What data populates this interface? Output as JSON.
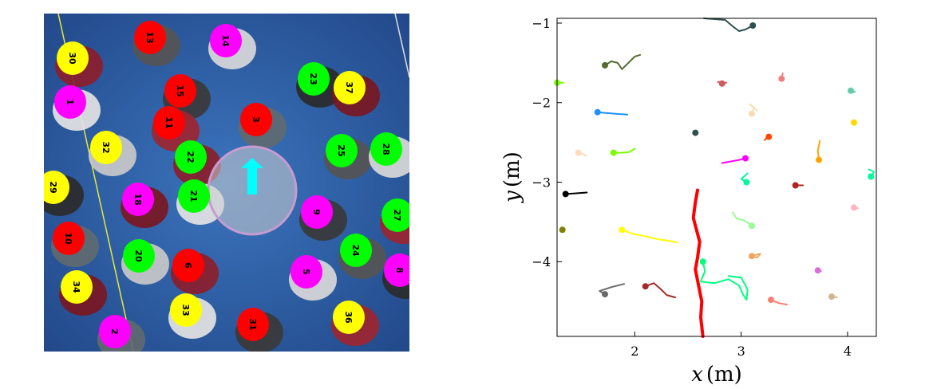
{
  "photo": {
    "background": "#2f5fa0",
    "robot_color": "#00ffff",
    "labels": [
      {
        "id": "30",
        "color": "#ffff00"
      },
      {
        "id": "13",
        "color": "#ff0000"
      },
      {
        "id": "14",
        "color": "#ff00ff"
      },
      {
        "id": "23",
        "color": "#00ff00"
      },
      {
        "id": "37",
        "color": "#ffff00"
      },
      {
        "id": "1",
        "color": "#ff00ff"
      },
      {
        "id": "15",
        "color": "#ff0000"
      },
      {
        "id": "11",
        "color": "#ff0000"
      },
      {
        "id": "3",
        "color": "#ff0000"
      },
      {
        "id": "32",
        "color": "#ffff00"
      },
      {
        "id": "22",
        "color": "#00ff00"
      },
      {
        "id": "25",
        "color": "#00ff00"
      },
      {
        "id": "28",
        "color": "#00ff00"
      },
      {
        "id": "29",
        "color": "#ffff00"
      },
      {
        "id": "18",
        "color": "#ff00ff"
      },
      {
        "id": "21",
        "color": "#00ff00"
      },
      {
        "id": "9",
        "color": "#ff00ff"
      },
      {
        "id": "27",
        "color": "#00ff00"
      },
      {
        "id": "10",
        "color": "#ff0000"
      },
      {
        "id": "20",
        "color": "#00ff00"
      },
      {
        "id": "6",
        "color": "#ff0000"
      },
      {
        "id": "24",
        "color": "#00ff00"
      },
      {
        "id": "5",
        "color": "#ff00ff"
      },
      {
        "id": "8",
        "color": "#ff00ff"
      },
      {
        "id": "34",
        "color": "#ffff00"
      },
      {
        "id": "33",
        "color": "#ffff00"
      },
      {
        "id": "31",
        "color": "#ff0000"
      },
      {
        "id": "36",
        "color": "#ffff00"
      },
      {
        "id": "2",
        "color": "#ff00ff"
      }
    ]
  },
  "chart_data": {
    "type": "line",
    "xlabel": "x",
    "ylabel": "y",
    "x_unit": "(m)",
    "y_unit": "(m)",
    "xlim": [
      1.27,
      4.27
    ],
    "ylim": [
      -4.94,
      -0.94
    ],
    "x_ticks": [
      2,
      3,
      4
    ],
    "y_ticks": [
      -1,
      -2,
      -3,
      -4
    ],
    "x_tick_labels": [
      "2",
      "3",
      "4"
    ],
    "y_tick_labels": [
      "−1",
      "−2",
      "−3",
      "−4"
    ],
    "grid": false,
    "series": [
      {
        "color": "#ff0000",
        "width": 4,
        "marker": false,
        "points": [
          [
            2.59,
            -3.1
          ],
          [
            2.57,
            -3.25
          ],
          [
            2.55,
            -3.45
          ],
          [
            2.58,
            -3.6
          ],
          [
            2.61,
            -3.75
          ],
          [
            2.59,
            -3.95
          ],
          [
            2.57,
            -4.1
          ],
          [
            2.6,
            -4.3
          ],
          [
            2.63,
            -4.5
          ],
          [
            2.62,
            -4.7
          ],
          [
            2.64,
            -4.94
          ]
        ]
      },
      {
        "color": "#2f4f4f",
        "points": [
          [
            3.11,
            -1.03
          ],
          [
            3.04,
            -1.08
          ],
          [
            2.98,
            -1.1
          ],
          [
            2.92,
            -1.04
          ],
          [
            2.85,
            -0.96
          ],
          [
            2.65,
            -0.94
          ]
        ]
      },
      {
        "color": "#556b2f",
        "points": [
          [
            1.72,
            -1.53
          ],
          [
            1.78,
            -1.48
          ],
          [
            1.84,
            -1.5
          ],
          [
            1.88,
            -1.58
          ],
          [
            1.94,
            -1.5
          ],
          [
            2.0,
            -1.42
          ],
          [
            2.05,
            -1.4
          ]
        ]
      },
      {
        "color": "#7cfc00",
        "points": [
          [
            1.27,
            -1.75
          ],
          [
            1.33,
            -1.75
          ]
        ]
      },
      {
        "color": "#cd5c5c",
        "points": [
          [
            2.82,
            -1.76
          ],
          [
            2.86,
            -1.75
          ],
          [
            2.78,
            -1.74
          ]
        ]
      },
      {
        "color": "#f08080",
        "points": [
          [
            3.38,
            -1.7
          ],
          [
            3.39,
            -1.63
          ]
        ]
      },
      {
        "color": "#66cdaa",
        "points": [
          [
            4.03,
            -1.85
          ],
          [
            4.07,
            -1.86
          ],
          [
            4.05,
            -1.87
          ]
        ]
      },
      {
        "color": "#1e90ff",
        "points": [
          [
            1.65,
            -2.12
          ],
          [
            1.73,
            -2.13
          ],
          [
            1.82,
            -2.14
          ],
          [
            1.93,
            -2.15
          ]
        ]
      },
      {
        "color": "#f5deb3",
        "points": [
          [
            3.1,
            -2.14
          ],
          [
            3.12,
            -2.06
          ],
          [
            3.08,
            -2.02
          ],
          [
            3.15,
            -2.1
          ]
        ]
      },
      {
        "color": "#ffd700",
        "points": [
          [
            4.06,
            -2.25
          ]
        ]
      },
      {
        "color": "#2f4f4f",
        "points": [
          [
            2.57,
            -2.38
          ]
        ]
      },
      {
        "color": "#ff4500",
        "points": [
          [
            3.26,
            -2.43
          ],
          [
            3.22,
            -2.47
          ]
        ]
      },
      {
        "color": "#ffa500",
        "points": [
          [
            3.73,
            -2.72
          ],
          [
            3.72,
            -2.6
          ],
          [
            3.74,
            -2.48
          ]
        ]
      },
      {
        "color": "#ffdab9",
        "points": [
          [
            1.47,
            -2.63
          ],
          [
            1.52,
            -2.65
          ],
          [
            1.54,
            -2.67
          ]
        ]
      },
      {
        "color": "#7cfc00",
        "points": [
          [
            1.8,
            -2.63
          ],
          [
            1.88,
            -2.63
          ],
          [
            1.95,
            -2.62
          ],
          [
            2.0,
            -2.58
          ]
        ]
      },
      {
        "color": "#ff00ff",
        "points": [
          [
            3.04,
            -2.7
          ],
          [
            2.98,
            -2.72
          ],
          [
            2.9,
            -2.74
          ],
          [
            2.82,
            -2.76
          ]
        ]
      },
      {
        "color": "#00fa9a",
        "points": [
          [
            4.22,
            -2.93
          ],
          [
            4.25,
            -2.87
          ],
          [
            4.2,
            -2.84
          ]
        ]
      },
      {
        "color": "#00fa9a",
        "points": [
          [
            3.05,
            -3.0
          ],
          [
            3.0,
            -2.96
          ],
          [
            3.06,
            -2.89
          ]
        ]
      },
      {
        "color": "#000000",
        "points": [
          [
            1.35,
            -3.15
          ],
          [
            1.45,
            -3.14
          ],
          [
            1.55,
            -3.13
          ]
        ]
      },
      {
        "color": "#b22222",
        "points": [
          [
            3.51,
            -3.04
          ],
          [
            3.58,
            -3.04
          ]
        ]
      },
      {
        "color": "#98fb98",
        "points": [
          [
            3.1,
            -3.55
          ],
          [
            3.03,
            -3.48
          ],
          [
            2.96,
            -3.46
          ],
          [
            2.92,
            -3.38
          ]
        ]
      },
      {
        "color": "#ffb6c1",
        "points": [
          [
            4.06,
            -3.32
          ],
          [
            4.1,
            -3.33
          ]
        ]
      },
      {
        "color": "#808000",
        "points": [
          [
            1.32,
            -3.6
          ]
        ]
      },
      {
        "color": "#ffff00",
        "points": [
          [
            1.88,
            -3.6
          ],
          [
            1.98,
            -3.65
          ],
          [
            2.1,
            -3.68
          ],
          [
            2.22,
            -3.72
          ],
          [
            2.33,
            -3.74
          ],
          [
            2.4,
            -3.76
          ]
        ]
      },
      {
        "color": "#f4a460",
        "points": [
          [
            3.1,
            -3.93
          ],
          [
            3.15,
            -3.95
          ],
          [
            3.18,
            -3.9
          ],
          [
            3.12,
            -3.92
          ]
        ]
      },
      {
        "color": "#00ff7f",
        "points": [
          [
            2.64,
            -4.0
          ],
          [
            2.66,
            -4.12
          ],
          [
            2.62,
            -4.25
          ],
          [
            2.75,
            -4.27
          ],
          [
            2.88,
            -4.22
          ],
          [
            2.98,
            -4.3
          ],
          [
            3.02,
            -4.42
          ],
          [
            3.05,
            -4.48
          ],
          [
            3.06,
            -4.35
          ],
          [
            3.0,
            -4.2
          ],
          [
            2.88,
            -4.18
          ]
        ]
      },
      {
        "color": "#da70d6",
        "points": [
          [
            3.72,
            -4.11
          ],
          [
            3.75,
            -4.12
          ]
        ]
      },
      {
        "color": "#696969",
        "points": [
          [
            1.72,
            -4.41
          ],
          [
            1.67,
            -4.37
          ],
          [
            1.78,
            -4.32
          ],
          [
            1.9,
            -4.28
          ]
        ]
      },
      {
        "color": "#a52a2a",
        "points": [
          [
            2.1,
            -4.31
          ],
          [
            2.18,
            -4.27
          ],
          [
            2.24,
            -4.34
          ],
          [
            2.3,
            -4.42
          ],
          [
            2.38,
            -4.45
          ]
        ]
      },
      {
        "color": "#fa8072",
        "points": [
          [
            3.28,
            -4.48
          ],
          [
            3.35,
            -4.52
          ],
          [
            3.43,
            -4.54
          ]
        ]
      },
      {
        "color": "#d2b48c",
        "points": [
          [
            3.85,
            -4.44
          ],
          [
            3.9,
            -4.45
          ]
        ]
      }
    ]
  }
}
